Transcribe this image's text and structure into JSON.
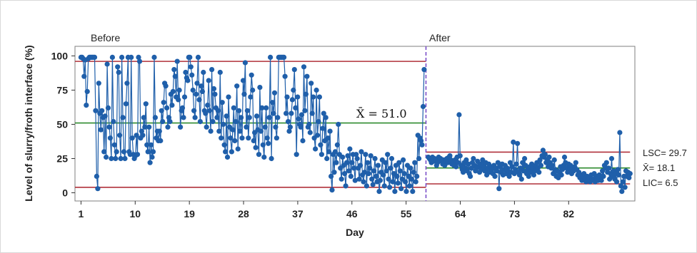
{
  "chart_data": {
    "type": "line",
    "title": "",
    "xlabel": "Day",
    "ylabel": "Level of slurry/froth interface (%)",
    "xlim": [
      0,
      93
    ],
    "ylim": [
      -6,
      107
    ],
    "x_ticks": [
      "1",
      "10",
      "19",
      "28",
      "37",
      "46",
      "55",
      "64",
      "73",
      "82"
    ],
    "y_ticks": [
      "0",
      "25",
      "50",
      "75",
      "100"
    ],
    "phase_labels": {
      "before": "Before",
      "after": "After"
    },
    "phase_change_day": 58.3,
    "colors": {
      "points": "#1f5faa",
      "limits": "#b0303a",
      "center": "#2e8b2e",
      "phase_line": "#7b4fc9"
    },
    "before": {
      "center": 51.0,
      "center_label": "X̄ = 51.0",
      "ucl": 96,
      "lcl": 4,
      "values": [
        99,
        99,
        98,
        85,
        97,
        64,
        74,
        98,
        99,
        99,
        99,
        99,
        99,
        99,
        60,
        12,
        3,
        80,
        58,
        46,
        60,
        55,
        30,
        56,
        26,
        94,
        62,
        48,
        40,
        25,
        99,
        52,
        35,
        25,
        30,
        92,
        88,
        42,
        25,
        99,
        55,
        30,
        25,
        65,
        80,
        99,
        30,
        28,
        99,
        40,
        28,
        25,
        27,
        42,
        28,
        99,
        96,
        40,
        45,
        42,
        55,
        48,
        65,
        35,
        30,
        48,
        22,
        35,
        26,
        30,
        99,
        55,
        40,
        45,
        38,
        45,
        38,
        60,
        52,
        66,
        80,
        78,
        62,
        48,
        55,
        52,
        72,
        64,
        74,
        90,
        85,
        70,
        96,
        68,
        75,
        48,
        60,
        62,
        55,
        70,
        88,
        84,
        82,
        99,
        99,
        92,
        86,
        75,
        60,
        55,
        72,
        80,
        99,
        68,
        52,
        78,
        74,
        88,
        60,
        58,
        48,
        64,
        82,
        60,
        45,
        90,
        52,
        76,
        72,
        62,
        55,
        60,
        45,
        88,
        40,
        66,
        50,
        35,
        30,
        56,
        26,
        70,
        48,
        40,
        30,
        46,
        62,
        38,
        52,
        78,
        32,
        60,
        45,
        55,
        40,
        82,
        72,
        95,
        48,
        60,
        40,
        55,
        70,
        86,
        75,
        38,
        44,
        33,
        56,
        46,
        28,
        77,
        45,
        62,
        35,
        26,
        48,
        62,
        40,
        36,
        55,
        99,
        25,
        66,
        58,
        73,
        48,
        40,
        55,
        99,
        99,
        99,
        99,
        99,
        99,
        85,
        58,
        70,
        52,
        45,
        48,
        58,
        68,
        75,
        90,
        62,
        28,
        70,
        54,
        50,
        48,
        57,
        38,
        92,
        60,
        72,
        85,
        48,
        50,
        44,
        80,
        58,
        70,
        40,
        32,
        75,
        42,
        52,
        70,
        35,
        28,
        47,
        58,
        38,
        55,
        25,
        40,
        30,
        45,
        12,
        2,
        28,
        15,
        30,
        22,
        35,
        50,
        28,
        18,
        10,
        26,
        20,
        14,
        5,
        22,
        27,
        16,
        32,
        12,
        22,
        28,
        18,
        9,
        28,
        25,
        18,
        10,
        20,
        30,
        13,
        8,
        15,
        28,
        5,
        22,
        14,
        18,
        27,
        10,
        6,
        16,
        25,
        12,
        8,
        20,
        1,
        9,
        15,
        24,
        13,
        5,
        22,
        16,
        28,
        10,
        4,
        18,
        25,
        8,
        14,
        1,
        20,
        12,
        7,
        22,
        16,
        3,
        10,
        24,
        14,
        8,
        1,
        20,
        12,
        5,
        18,
        10,
        1,
        15,
        22,
        8,
        12,
        42,
        25,
        40,
        38,
        35,
        63,
        90
      ]
    },
    "after": {
      "center": 18.1,
      "ucl": 29.7,
      "lcl": 6.5,
      "labels": {
        "ucl": "LSC= 29.7",
        "center": "X̄= 18.1",
        "lcl": "LIC= 6.5"
      },
      "values": [
        26,
        25,
        24,
        22,
        26,
        23,
        25,
        24,
        20,
        22,
        26,
        24,
        25,
        23,
        21,
        24,
        20,
        23,
        25,
        22,
        26,
        27,
        24,
        21,
        22,
        20,
        24,
        19,
        26,
        22,
        57,
        27,
        20,
        17,
        15,
        22,
        18,
        24,
        16,
        21,
        14,
        12,
        18,
        22,
        25,
        20,
        16,
        18,
        23,
        19,
        15,
        21,
        17,
        24,
        20,
        16,
        22,
        13,
        18,
        21,
        15,
        19,
        17,
        14,
        20,
        12,
        18,
        16,
        22,
        3,
        19,
        15,
        21,
        13,
        17,
        20,
        14,
        18,
        16,
        12,
        22,
        15,
        19,
        37,
        14,
        17,
        21,
        36,
        15,
        13,
        18,
        10,
        22,
        16,
        25,
        20,
        14,
        17,
        12,
        19,
        15,
        21,
        18,
        13,
        16,
        20,
        22,
        18,
        15,
        24,
        20,
        27,
        31,
        26,
        28,
        22,
        24,
        19,
        26,
        22,
        18,
        20,
        14,
        24,
        17,
        12,
        16,
        11,
        15,
        19,
        13,
        17,
        20,
        26,
        22,
        18,
        15,
        21,
        17,
        20,
        14,
        18,
        16,
        19,
        22,
        17,
        13,
        15,
        11,
        13,
        9,
        12,
        14,
        10,
        8,
        12,
        9,
        11,
        8,
        13,
        10,
        9,
        14,
        8,
        12,
        10,
        9,
        13,
        11,
        9,
        16,
        12,
        20,
        18,
        22,
        15,
        18,
        10,
        14,
        25,
        12,
        16,
        10,
        14,
        8,
        17,
        13,
        44,
        5,
        1,
        8,
        12,
        4,
        16,
        12,
        15,
        11,
        14
      ]
    }
  }
}
